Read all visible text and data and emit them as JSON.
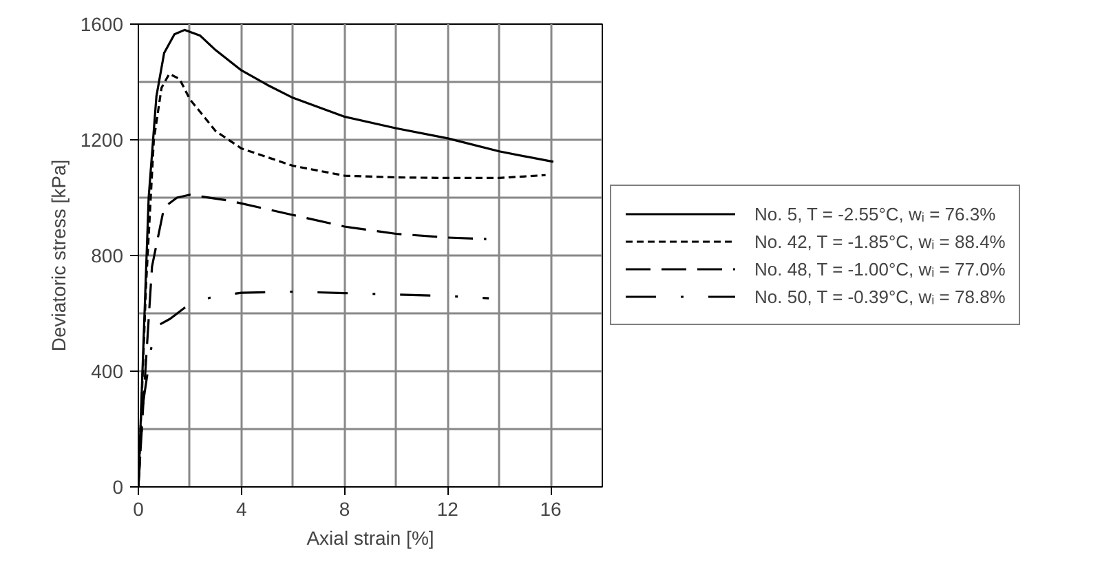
{
  "chart_data": {
    "type": "line",
    "xlabel": "Axial strain [%]",
    "ylabel": "Deviatoric stress [kPa]",
    "xlim": [
      0,
      18
    ],
    "ylim": [
      0,
      1600
    ],
    "xticks": [
      0,
      4,
      8,
      12,
      16
    ],
    "yticks": [
      0,
      400,
      800,
      1200,
      1600
    ],
    "grid": true,
    "legend": "right",
    "series": [
      {
        "name": "No. 5, T = -2.55°C, wᵢ = 76.3%",
        "color": "#000000",
        "line_style": "solid",
        "x": [
          0,
          0.2,
          0.4,
          0.7,
          1.0,
          1.4,
          1.8,
          2.4,
          3,
          4,
          5,
          6,
          8,
          10,
          12,
          14,
          16.1
        ],
        "values": [
          0,
          500,
          1000,
          1350,
          1500,
          1565,
          1580,
          1560,
          1510,
          1440,
          1390,
          1345,
          1280,
          1240,
          1205,
          1160,
          1124
        ]
      },
      {
        "name": "No. 42, T = -1.85°C, wᵢ = 88.4%",
        "color": "#000000",
        "line_style": "dashed",
        "x": [
          0,
          0.3,
          0.6,
          0.9,
          1.2,
          1.6,
          2,
          3,
          4,
          6,
          8,
          10,
          12,
          14,
          15.8
        ],
        "values": [
          0,
          700,
          1200,
          1380,
          1428,
          1410,
          1340,
          1230,
          1170,
          1110,
          1076,
          1070,
          1068,
          1068,
          1078
        ]
      },
      {
        "name": "No. 48, T = -1.00°C, wᵢ = 77.0%",
        "color": "#000000",
        "line_style": "longdash",
        "x": [
          0,
          0.2,
          0.53,
          1.0,
          1.5,
          2,
          3.5,
          6,
          8,
          10,
          12,
          13.5
        ],
        "values": [
          0,
          300,
          762,
          967,
          1000,
          1010,
          990,
          940,
          900,
          875,
          862,
          857
        ]
      },
      {
        "name": "No. 50, T = -0.39°C, wᵢ = 78.8%",
        "color": "#000000",
        "line_style": "dashdot",
        "x": [
          0,
          0.2,
          0.5,
          0.8,
          1.23,
          2,
          3,
          4,
          6,
          8,
          10,
          12,
          13.6
        ],
        "values": [
          0,
          300,
          480,
          560,
          581,
          633,
          660,
          671,
          675,
          670,
          665,
          660,
          652
        ]
      }
    ]
  }
}
